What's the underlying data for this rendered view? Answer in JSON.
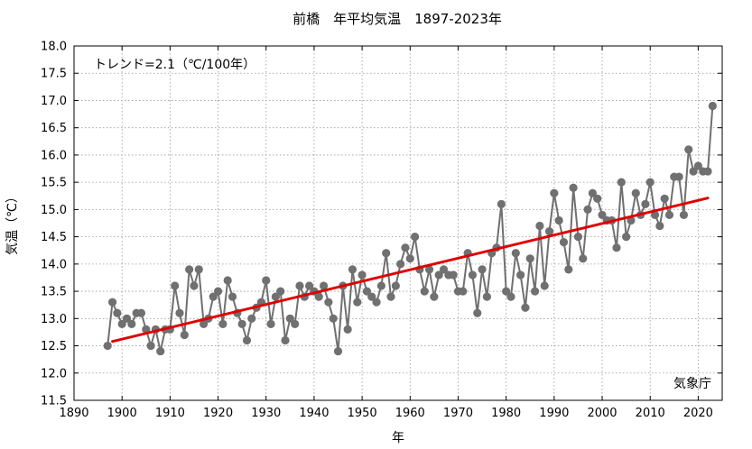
{
  "chart_data": {
    "type": "line",
    "title": "前橋　年平均気温　1897-2023年",
    "xlabel": "年",
    "ylabel": "気温（℃）",
    "xlim": [
      1890,
      2025
    ],
    "ylim": [
      11.5,
      18.0
    ],
    "xticks": [
      1890,
      1900,
      1910,
      1920,
      1930,
      1940,
      1950,
      1960,
      1970,
      1980,
      1990,
      2000,
      2010,
      2020
    ],
    "yticks": [
      11.5,
      12.0,
      12.5,
      13.0,
      13.5,
      14.0,
      14.5,
      15.0,
      15.5,
      16.0,
      16.5,
      17.0,
      17.5,
      18.0
    ],
    "grid": true,
    "series_color": "#707070",
    "trend_color": "#e00000",
    "annotation": "トレンド=2.1（℃/100年）",
    "source": "気象庁",
    "series": [
      {
        "x": [
          1897,
          1898,
          1899,
          1900,
          1901,
          1902,
          1903,
          1904,
          1905,
          1906,
          1907,
          1908,
          1909,
          1910,
          1911,
          1912,
          1913,
          1914,
          1915,
          1916,
          1917,
          1918,
          1919,
          1920,
          1921,
          1922,
          1923,
          1924,
          1925,
          1926,
          1927,
          1928,
          1929,
          1930,
          1931,
          1932,
          1933,
          1934,
          1935,
          1936,
          1937,
          1938,
          1939,
          1940,
          1941,
          1942,
          1943,
          1944,
          1945,
          1946,
          1947,
          1948,
          1949,
          1950,
          1951,
          1952,
          1953,
          1954,
          1955,
          1956,
          1957,
          1958,
          1959,
          1960,
          1961,
          1962,
          1963,
          1964,
          1965,
          1966,
          1967,
          1968,
          1969,
          1970,
          1971,
          1972,
          1973,
          1974,
          1975,
          1976,
          1977,
          1978,
          1979,
          1980,
          1981,
          1982,
          1983,
          1984,
          1985,
          1986,
          1987,
          1988,
          1989,
          1990,
          1991,
          1992,
          1993,
          1994,
          1995,
          1996,
          1997,
          1998,
          1999,
          2000,
          2001,
          2002,
          2003,
          2004,
          2005,
          2006,
          2007,
          2008,
          2009,
          2010,
          2011,
          2012,
          2013,
          2014,
          2015,
          2016,
          2017,
          2018,
          2019,
          2020,
          2021,
          2022,
          2023
        ],
        "values": [
          12.5,
          13.3,
          13.1,
          12.9,
          13.0,
          12.9,
          13.1,
          13.1,
          12.8,
          12.5,
          12.8,
          12.4,
          12.8,
          12.8,
          13.6,
          13.1,
          12.7,
          13.9,
          13.6,
          13.9,
          12.9,
          13.0,
          13.4,
          13.5,
          12.9,
          13.7,
          13.4,
          13.1,
          12.9,
          12.6,
          13.0,
          13.2,
          13.3,
          13.7,
          12.9,
          13.4,
          13.5,
          12.6,
          13.0,
          12.9,
          13.6,
          13.4,
          13.6,
          13.5,
          13.4,
          13.6,
          13.3,
          13.0,
          12.4,
          13.6,
          12.8,
          13.9,
          13.3,
          13.8,
          13.5,
          13.4,
          13.3,
          13.6,
          14.2,
          13.4,
          13.6,
          14.0,
          14.3,
          14.1,
          14.5,
          13.9,
          13.5,
          13.9,
          13.4,
          13.8,
          13.9,
          13.8,
          13.8,
          13.5,
          13.5,
          14.2,
          13.8,
          13.1,
          13.9,
          13.4,
          14.2,
          14.3,
          15.1,
          13.5,
          13.4,
          14.2,
          13.8,
          13.2,
          14.1,
          13.5,
          14.7,
          13.6,
          14.6,
          15.3,
          14.8,
          14.4,
          13.9,
          15.4,
          14.5,
          14.1,
          15.0,
          15.3,
          15.2,
          14.9,
          14.8,
          14.8,
          14.3,
          15.5,
          14.5,
          14.8,
          15.3,
          14.9,
          15.1,
          15.5,
          14.9,
          14.7,
          15.2,
          14.9,
          15.6,
          15.6,
          14.9,
          16.1,
          15.7,
          15.8,
          15.7,
          15.7,
          16.9
        ]
      }
    ],
    "trend": {
      "x": [
        1898,
        2022
      ],
      "values": [
        12.58,
        15.21
      ]
    }
  }
}
